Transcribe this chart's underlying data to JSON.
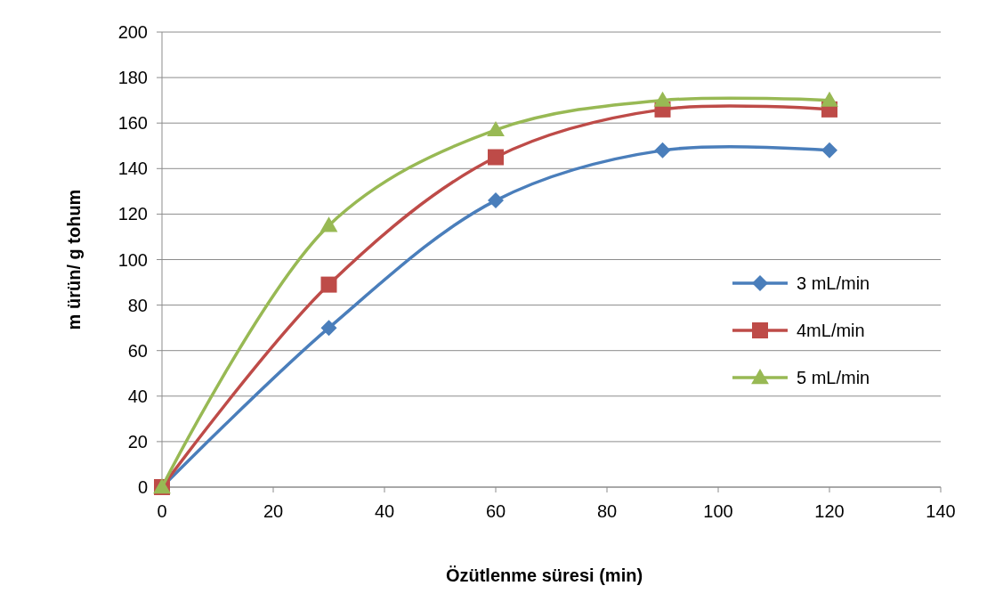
{
  "chart_data": {
    "type": "line",
    "xlabel": "Özütlenme süresi (min)",
    "ylabel": "m ürün/ g tohum",
    "x": [
      0,
      30,
      60,
      90,
      120
    ],
    "series": [
      {
        "name": "3 mL/min",
        "color": "#4a7ebb",
        "marker": "diamond",
        "values": [
          0,
          70,
          126,
          148,
          148
        ]
      },
      {
        "name": "4mL/min",
        "color": "#be4b48",
        "marker": "square",
        "values": [
          0,
          89,
          145,
          166,
          166
        ]
      },
      {
        "name": "5 mL/min",
        "color": "#98b954",
        "marker": "triangle",
        "values": [
          0,
          115,
          157,
          170,
          170
        ]
      }
    ],
    "xlim": [
      0,
      140
    ],
    "xticks": [
      0,
      20,
      40,
      60,
      80,
      100,
      120,
      140
    ],
    "ylim": [
      0,
      200
    ],
    "yticks": [
      0,
      20,
      40,
      60,
      80,
      100,
      120,
      140,
      160,
      180,
      200
    ],
    "grid": "y",
    "legend": "right",
    "line_style": "solid"
  }
}
